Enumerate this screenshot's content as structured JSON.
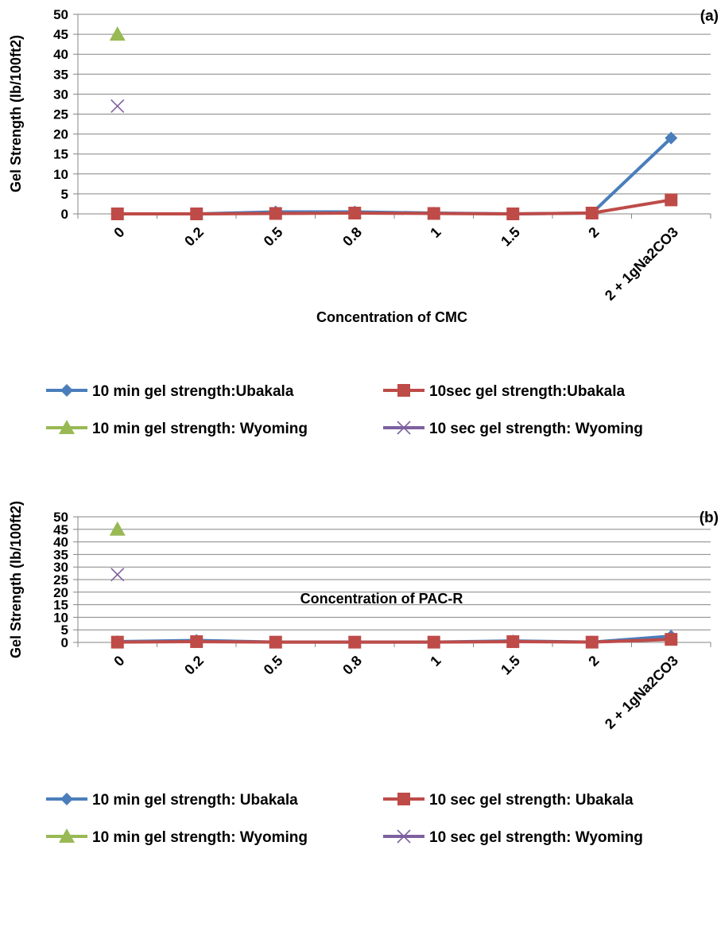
{
  "chart_data": [
    {
      "type": "line",
      "panel_label": "(a)",
      "xlabel": "Concentration of CMC",
      "ylabel": "Gel Strength (lb/100ft2)",
      "categories": [
        "0",
        "0.2",
        "0.5",
        "0.8",
        "1",
        "1.5",
        "2",
        "2 + 1gNa2CO3"
      ],
      "ylim": [
        0,
        50
      ],
      "yticks": [
        0,
        5,
        10,
        15,
        20,
        25,
        30,
        35,
        40,
        45,
        50
      ],
      "grid": true,
      "legend_position": "bottom",
      "series": [
        {
          "name": "10 min gel strength:Ubakala",
          "color": "#4a7ebb",
          "marker": "diamond",
          "line": true,
          "values": [
            0,
            0,
            0.5,
            0.5,
            0.2,
            0,
            0.2,
            19
          ]
        },
        {
          "name": "10sec gel strength:Ubakala",
          "color": "#be4b48",
          "marker": "square",
          "line": true,
          "values": [
            0,
            0,
            0.1,
            0.2,
            0.1,
            0,
            0.2,
            3.5
          ]
        },
        {
          "name": "10 min gel strength: Wyoming",
          "color": "#98b954",
          "marker": "triangle",
          "line": false,
          "values": [
            45,
            null,
            null,
            null,
            null,
            null,
            null,
            null
          ]
        },
        {
          "name": "10 sec gel strength: Wyoming",
          "color": "#7d60a0",
          "marker": "x",
          "line": false,
          "values": [
            27,
            null,
            null,
            null,
            null,
            null,
            null,
            null
          ]
        }
      ]
    },
    {
      "type": "line",
      "panel_label": "(b)",
      "xlabel": "Concentration of PAC-R",
      "ylabel": "Gel Strength (lb/100ft2)",
      "categories": [
        "0",
        "0.2",
        "0.5",
        "0.8",
        "1",
        "1.5",
        "2",
        "2 + 1gNa2CO3"
      ],
      "ylim": [
        0,
        50
      ],
      "yticks": [
        0,
        5,
        10,
        15,
        20,
        25,
        30,
        35,
        40,
        45,
        50
      ],
      "grid": true,
      "legend_position": "bottom",
      "series": [
        {
          "name": "10 min gel strength: Ubakala",
          "color": "#4a7ebb",
          "marker": "diamond",
          "line": true,
          "values": [
            0.3,
            0.8,
            0.1,
            0.1,
            0.1,
            0.6,
            0.1,
            2.5
          ]
        },
        {
          "name": "10 sec gel strength: Ubakala",
          "color": "#be4b48",
          "marker": "square",
          "line": true,
          "values": [
            0.1,
            0.3,
            0.1,
            0.1,
            0.1,
            0.3,
            0.1,
            1.2
          ]
        },
        {
          "name": "10 min gel strength: Wyoming",
          "color": "#98b954",
          "marker": "triangle",
          "line": false,
          "values": [
            45,
            null,
            null,
            null,
            null,
            null,
            null,
            null
          ]
        },
        {
          "name": "10 sec gel strength: Wyoming",
          "color": "#7d60a0",
          "marker": "x",
          "line": false,
          "values": [
            27,
            null,
            null,
            null,
            null,
            null,
            null,
            null
          ]
        }
      ]
    }
  ]
}
